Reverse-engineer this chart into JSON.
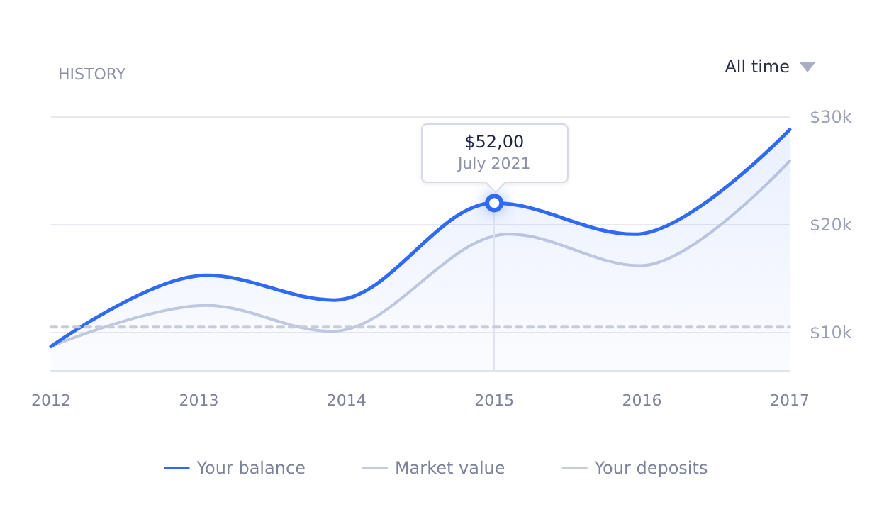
{
  "chart_data": {
    "type": "line",
    "title": "HISTORY",
    "x": [
      2012,
      2013.05,
      2013.92,
      2015,
      2015.95,
      2017
    ],
    "series": [
      {
        "name": "Your balance",
        "type": "area",
        "color": "#2f6af5",
        "values": [
          8.7,
          15.3,
          13.0,
          22.0,
          19.1,
          28.8
        ]
      },
      {
        "name": "Market value",
        "color": "#c5cbe0",
        "x": [
          2012,
          2013.05,
          2013.9,
          2015.1,
          2015.99,
          2017
        ],
        "values": [
          8.7,
          12.5,
          10.1,
          19.1,
          16.2,
          25.9
        ]
      },
      {
        "name": "Your deposits",
        "color": "#c8ccd8",
        "line_style": "dashed",
        "x": [
          2012,
          2017
        ],
        "values": [
          10.5,
          10.5
        ]
      }
    ],
    "xlim": [
      2012,
      2017
    ],
    "xticks": [
      2012,
      2013,
      2014,
      2015,
      2016,
      2017
    ],
    "ylim": [
      6.5,
      30.3
    ],
    "yticks": [
      {
        "value": 10,
        "label": "$10k"
      },
      {
        "value": 20,
        "label": "$20k"
      },
      {
        "value": 30,
        "label": "$30k"
      }
    ],
    "ref_lines": [
      {
        "axis": "x",
        "value": 2015,
        "color": "#dfe3ee"
      }
    ],
    "grid": "y",
    "legend": "bottom",
    "marker": "none",
    "line_style": "solid",
    "annotations": [
      "$52,00",
      "July 2021",
      "All time"
    ]
  }
}
